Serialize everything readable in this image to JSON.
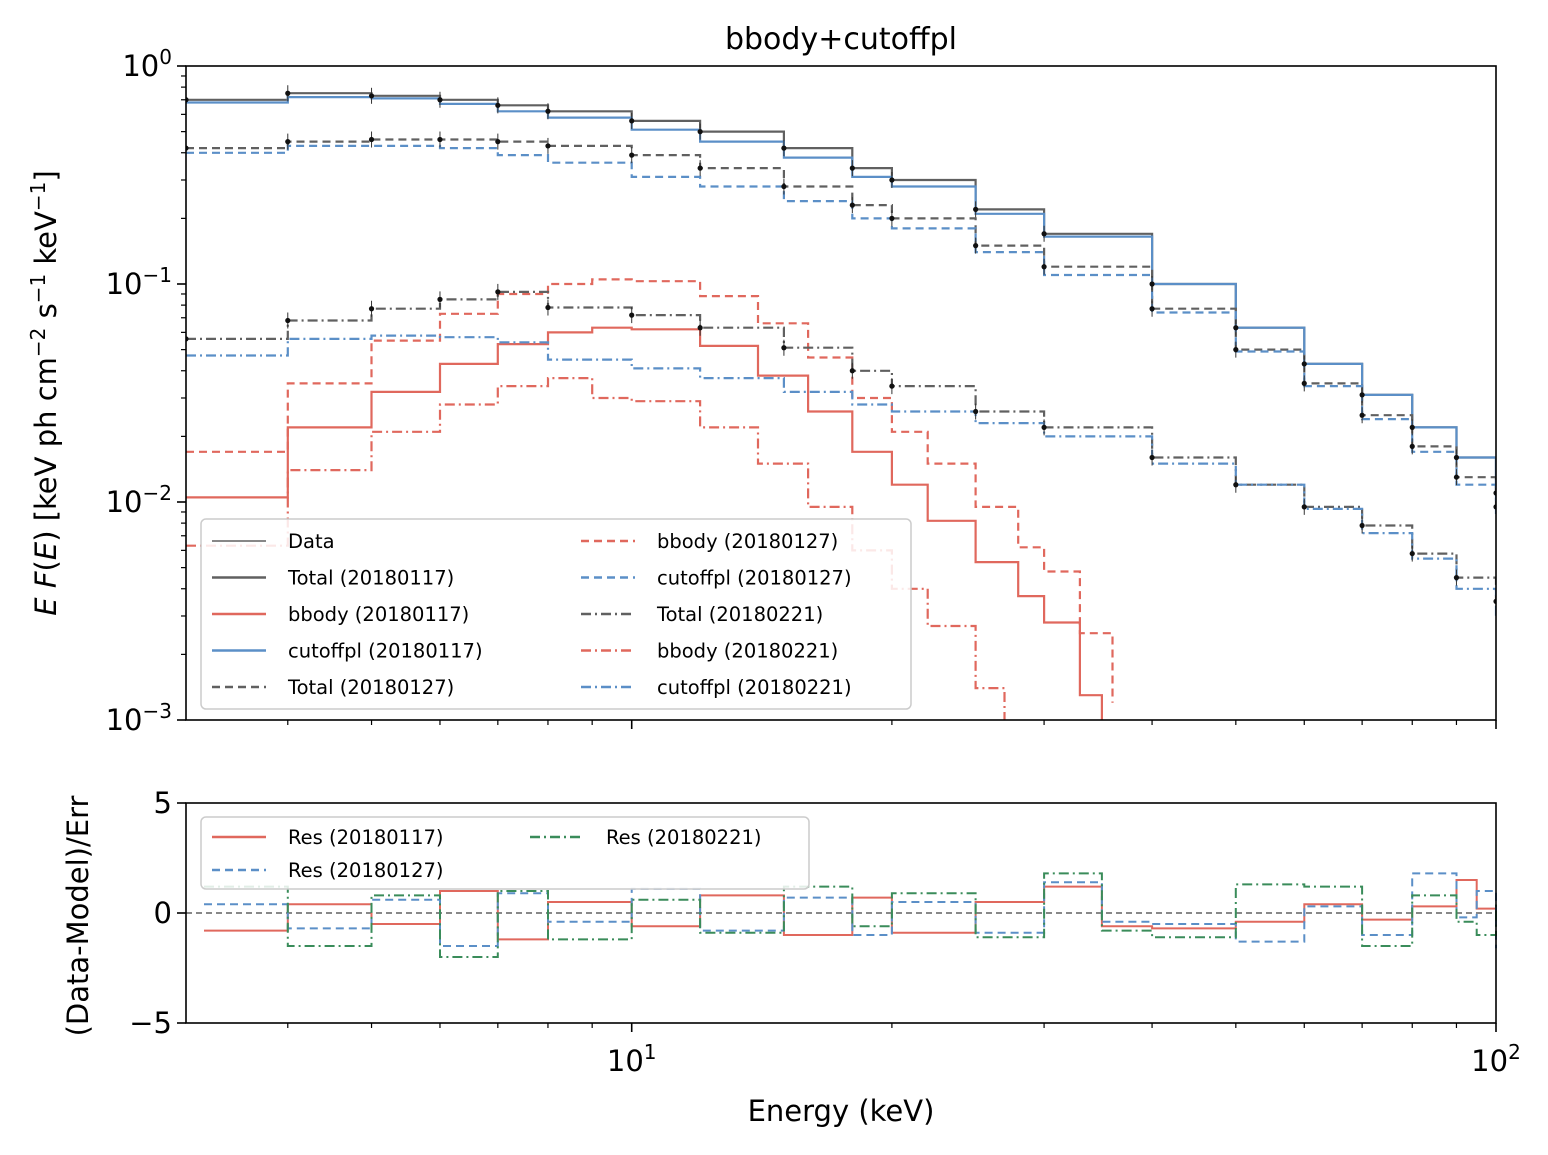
{
  "chart_data": [
    {
      "type": "line",
      "title": "bbody+cutoffpl",
      "ylabel": "E F(E) [keV ph cm^-2 s^-1 keV^-1]",
      "xlabel": "",
      "xscale": "log",
      "yscale": "log",
      "xlim": [
        3.05,
        100
      ],
      "ylim": [
        0.001,
        1
      ],
      "x_ticks": [
        10,
        100
      ],
      "y_ticks": [
        {
          "value": 1,
          "base": "10",
          "exp": "0"
        },
        {
          "value": 0.1,
          "base": "10",
          "exp": "−1"
        },
        {
          "value": 0.01,
          "base": "10",
          "exp": "−2"
        },
        {
          "value": 0.001,
          "base": "10",
          "exp": "−3"
        }
      ],
      "grid": false,
      "legend_position": "lower-left",
      "legend": [
        {
          "label": "Data",
          "color": "#606060",
          "style": "solid-thin"
        },
        {
          "label": "Total (20180117)",
          "color": "#606060",
          "style": "solid"
        },
        {
          "label": "bbody (20180117)",
          "color": "#e0685d",
          "style": "solid"
        },
        {
          "label": "cutoffpl (20180117)",
          "color": "#5b8fc7",
          "style": "solid"
        },
        {
          "label": "Total (20180127)",
          "color": "#606060",
          "style": "dashed"
        },
        {
          "label": "bbody (20180127)",
          "color": "#e0685d",
          "style": "dashed"
        },
        {
          "label": "cutoffpl (20180127)",
          "color": "#5b8fc7",
          "style": "dashed"
        },
        {
          "label": "Total (20180221)",
          "color": "#606060",
          "style": "dashdot"
        },
        {
          "label": "bbody (20180221)",
          "color": "#e0685d",
          "style": "dashdot"
        },
        {
          "label": "cutoffpl (20180221)",
          "color": "#5b8fc7",
          "style": "dashdot"
        }
      ],
      "series": [
        {
          "name": "Total (20180117)",
          "color": "#606060",
          "style": "solid",
          "x": [
            3.05,
            4,
            5,
            6,
            7,
            8,
            10,
            12,
            15,
            18,
            20,
            25,
            30,
            40,
            50,
            60,
            70,
            80,
            90,
            100
          ],
          "y": [
            0.7,
            0.75,
            0.73,
            0.7,
            0.66,
            0.62,
            0.56,
            0.5,
            0.42,
            0.34,
            0.3,
            0.22,
            0.17,
            0.1,
            0.063,
            0.043,
            0.031,
            0.022,
            0.016,
            0.011
          ]
        },
        {
          "name": "bbody (20180117)",
          "color": "#e0685d",
          "style": "solid",
          "x": [
            3.05,
            4,
            5,
            6,
            7,
            8,
            9,
            10,
            12,
            14,
            16,
            18,
            20,
            22,
            25,
            28,
            30,
            33,
            35
          ],
          "y": [
            0.0105,
            0.022,
            0.032,
            0.043,
            0.053,
            0.06,
            0.063,
            0.062,
            0.052,
            0.038,
            0.026,
            0.017,
            0.012,
            0.0082,
            0.0053,
            0.0037,
            0.0028,
            0.0013,
            0.0008
          ]
        },
        {
          "name": "cutoffpl (20180117)",
          "color": "#5b8fc7",
          "style": "solid",
          "x": [
            3.05,
            4,
            5,
            6,
            7,
            8,
            10,
            12,
            15,
            18,
            20,
            25,
            30,
            40,
            50,
            60,
            70,
            80,
            90,
            100
          ],
          "y": [
            0.68,
            0.72,
            0.71,
            0.67,
            0.62,
            0.58,
            0.51,
            0.45,
            0.38,
            0.31,
            0.28,
            0.21,
            0.165,
            0.1,
            0.063,
            0.043,
            0.031,
            0.022,
            0.016,
            0.011
          ]
        },
        {
          "name": "Total (20180127)",
          "color": "#606060",
          "style": "dashed",
          "x": [
            3.05,
            4,
            5,
            6,
            7,
            8,
            10,
            12,
            15,
            18,
            20,
            25,
            30,
            40,
            50,
            60,
            70,
            80,
            90,
            100
          ],
          "y": [
            0.42,
            0.45,
            0.46,
            0.46,
            0.45,
            0.43,
            0.39,
            0.34,
            0.28,
            0.23,
            0.2,
            0.15,
            0.12,
            0.077,
            0.05,
            0.035,
            0.025,
            0.018,
            0.013,
            0.0095
          ]
        },
        {
          "name": "bbody (20180127)",
          "color": "#e0685d",
          "style": "dashed",
          "x": [
            3.05,
            4,
            5,
            6,
            7,
            8,
            9,
            10,
            12,
            14,
            16,
            18,
            20,
            22,
            25,
            28,
            30,
            33,
            36
          ],
          "y": [
            0.017,
            0.035,
            0.055,
            0.073,
            0.09,
            0.1,
            0.105,
            0.103,
            0.088,
            0.066,
            0.046,
            0.03,
            0.021,
            0.015,
            0.0095,
            0.0062,
            0.0048,
            0.0025,
            0.0012
          ]
        },
        {
          "name": "cutoffpl (20180127)",
          "color": "#5b8fc7",
          "style": "dashed",
          "x": [
            3.05,
            4,
            5,
            6,
            7,
            8,
            10,
            12,
            15,
            18,
            20,
            25,
            30,
            40,
            50,
            60,
            70,
            80,
            90,
            100
          ],
          "y": [
            0.4,
            0.43,
            0.43,
            0.42,
            0.39,
            0.36,
            0.31,
            0.28,
            0.24,
            0.2,
            0.18,
            0.14,
            0.11,
            0.074,
            0.049,
            0.034,
            0.024,
            0.017,
            0.012,
            0.0085
          ]
        },
        {
          "name": "Total (20180221)",
          "color": "#606060",
          "style": "dashdot",
          "x": [
            3.05,
            4,
            5,
            6,
            7,
            8,
            10,
            12,
            15,
            18,
            20,
            25,
            30,
            40,
            50,
            60,
            70,
            80,
            90,
            100
          ],
          "y": [
            0.056,
            0.068,
            0.077,
            0.085,
            0.092,
            0.078,
            0.072,
            0.063,
            0.051,
            0.04,
            0.034,
            0.026,
            0.022,
            0.016,
            0.012,
            0.0095,
            0.0078,
            0.0058,
            0.0045,
            0.0035
          ]
        },
        {
          "name": "bbody (20180221)",
          "color": "#e0685d",
          "style": "dashdot",
          "x": [
            3.05,
            4,
            5,
            6,
            7,
            8,
            9,
            10,
            12,
            14,
            16,
            18,
            20,
            22,
            25,
            27
          ],
          "y": [
            0.0063,
            0.014,
            0.021,
            0.028,
            0.034,
            0.037,
            0.03,
            0.029,
            0.022,
            0.015,
            0.0095,
            0.006,
            0.004,
            0.0027,
            0.0014,
            0.0009
          ]
        },
        {
          "name": "cutoffpl (20180221)",
          "color": "#5b8fc7",
          "style": "dashdot",
          "x": [
            3.05,
            4,
            5,
            6,
            7,
            8,
            10,
            12,
            15,
            18,
            20,
            25,
            30,
            40,
            50,
            60,
            70,
            80,
            90,
            100
          ],
          "y": [
            0.047,
            0.056,
            0.058,
            0.057,
            0.054,
            0.045,
            0.041,
            0.037,
            0.032,
            0.028,
            0.026,
            0.023,
            0.02,
            0.015,
            0.012,
            0.0093,
            0.0072,
            0.0055,
            0.004,
            0.003
          ]
        }
      ]
    },
    {
      "type": "line",
      "title": "",
      "xlabel": "Energy (keV)",
      "ylabel": "(Data-Model)/Err",
      "xscale": "log",
      "xlim": [
        3.05,
        100
      ],
      "ylim": [
        -5,
        5
      ],
      "x_ticks": [
        {
          "value": 10,
          "base": "10",
          "exp": "1"
        },
        {
          "value": 100,
          "base": "10",
          "exp": "2"
        }
      ],
      "y_ticks": [
        {
          "value": 5,
          "label": "5"
        },
        {
          "value": 0,
          "label": "0"
        },
        {
          "value": -5,
          "label": "−5"
        }
      ],
      "grid": false,
      "legend_position": "top-left",
      "legend": [
        {
          "label": "Res (20180117)",
          "color": "#e0685d",
          "style": "solid"
        },
        {
          "label": "Res (20180127)",
          "color": "#5b8fc7",
          "style": "dashed"
        },
        {
          "label": "Res (20180221)",
          "color": "#3a8c5a",
          "style": "dashdot"
        }
      ],
      "series": [
        {
          "name": "Res (20180117)",
          "color": "#e0685d",
          "style": "solid",
          "x": [
            3.2,
            4,
            5,
            6,
            7,
            8,
            10,
            12,
            15,
            18,
            20,
            25,
            30,
            35,
            40,
            50,
            60,
            70,
            80,
            90,
            95,
            100
          ],
          "y": [
            -0.8,
            0.4,
            -0.5,
            1.0,
            -1.2,
            0.5,
            -0.6,
            0.8,
            -1.0,
            0.7,
            -0.9,
            0.5,
            1.2,
            -0.6,
            -0.7,
            -0.4,
            0.4,
            -0.3,
            0.3,
            1.5,
            0.2,
            -0.5
          ]
        },
        {
          "name": "Res (20180127)",
          "color": "#5b8fc7",
          "style": "dashed",
          "x": [
            3.2,
            4,
            5,
            6,
            7,
            8,
            10,
            12,
            15,
            18,
            20,
            25,
            30,
            35,
            40,
            50,
            60,
            70,
            80,
            90,
            95,
            100
          ],
          "y": [
            0.4,
            -0.7,
            0.6,
            -1.5,
            0.9,
            -0.4,
            1.1,
            -0.8,
            0.7,
            -1.0,
            0.5,
            -0.9,
            1.4,
            -0.4,
            -0.5,
            -1.3,
            0.3,
            -1.0,
            1.8,
            -0.2,
            1.0,
            -1.6
          ]
        },
        {
          "name": "Res (20180221)",
          "color": "#3a8c5a",
          "style": "dashdot",
          "x": [
            3.2,
            4,
            5,
            6,
            7,
            8,
            10,
            12,
            15,
            18,
            20,
            25,
            30,
            35,
            40,
            50,
            60,
            70,
            80,
            90,
            95,
            100
          ],
          "y": [
            1.2,
            -1.5,
            0.8,
            -2.0,
            1.0,
            -1.2,
            0.6,
            -0.9,
            1.2,
            -0.6,
            0.9,
            -1.1,
            1.8,
            -0.8,
            -1.1,
            1.3,
            1.2,
            -1.5,
            0.8,
            -0.4,
            -1.0,
            0.5
          ]
        }
      ]
    }
  ]
}
